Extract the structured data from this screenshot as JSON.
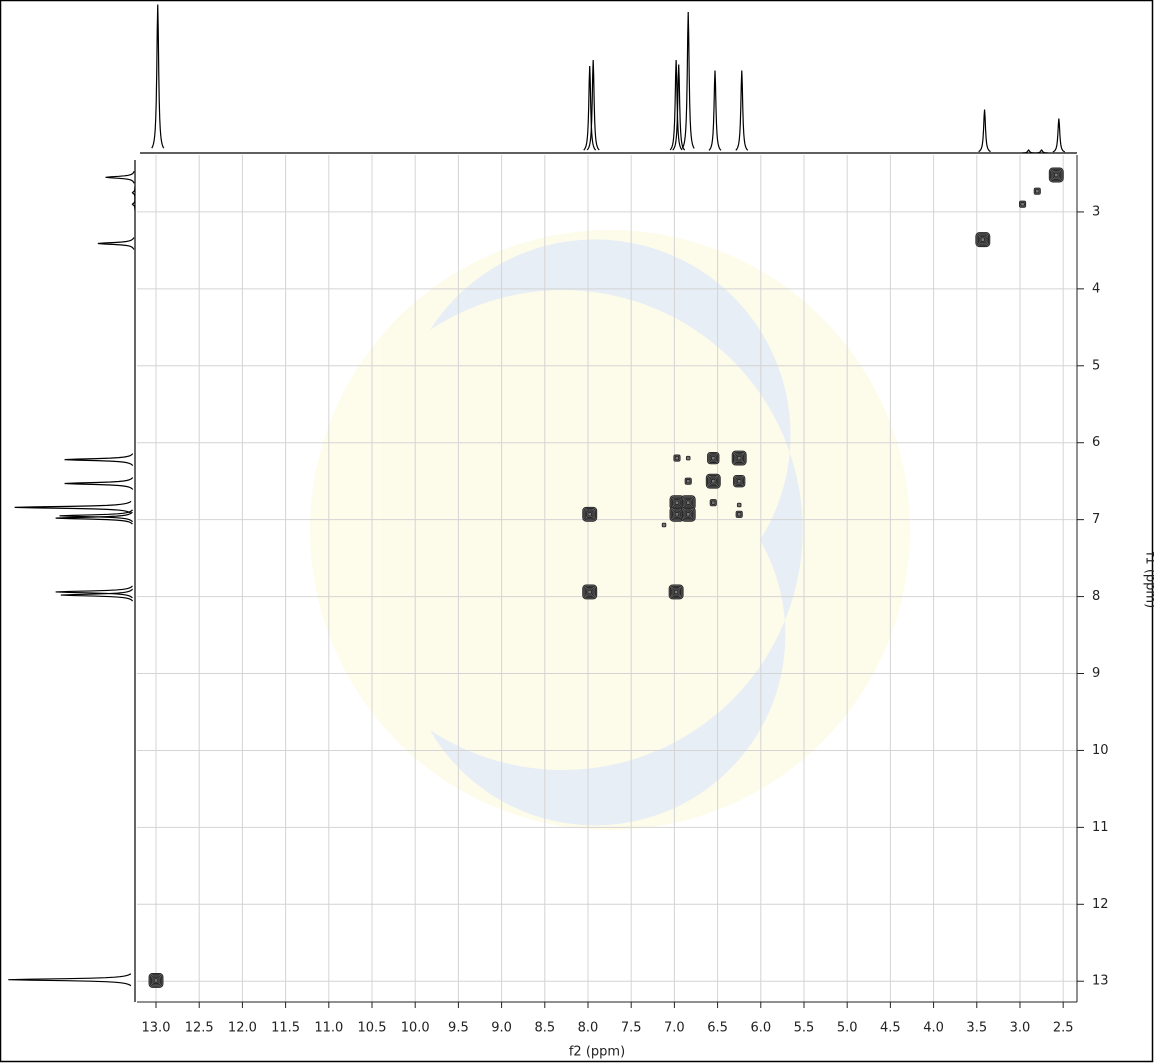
{
  "chart_data": {
    "type": "nmr2d",
    "x_label": "f2 (ppm)",
    "y_label": "f1 (ppm)",
    "xlim": [
      13.22,
      2.34
    ],
    "ylim": [
      2.26,
      13.27
    ],
    "xticks": [
      {
        "value": 13,
        "label": "13.0"
      },
      12.5,
      {
        "value": 12,
        "label": "12.0"
      },
      11.5,
      {
        "value": 11,
        "label": "11.0"
      },
      10.5,
      {
        "value": 10,
        "label": "10.0"
      },
      9.5,
      {
        "value": 9,
        "label": "9.0"
      },
      8.5,
      {
        "value": 8,
        "label": "8.0"
      },
      7.5,
      {
        "value": 7,
        "label": "7.0"
      },
      6.5,
      {
        "value": 6,
        "label": "6.0"
      },
      5.5,
      {
        "value": 5,
        "label": "5.0"
      },
      4.5,
      {
        "value": 4,
        "label": "4.0"
      },
      3.5,
      {
        "value": 3,
        "label": "3.0"
      },
      2.5
    ],
    "yticks": [
      3,
      4,
      5,
      6,
      7,
      8,
      9,
      10,
      11,
      12,
      13
    ],
    "grid": true,
    "projection": {
      "shifts": [
        12.98,
        7.98,
        7.94,
        6.98,
        6.95,
        6.84,
        6.53,
        6.22,
        3.41,
        2.9,
        2.75,
        2.55
      ],
      "intensities": [
        99,
        58,
        62,
        62,
        59,
        94,
        55,
        55,
        29,
        2,
        2,
        23
      ]
    },
    "cross_peaks": {
      "f2": [
        13.0,
        7.98,
        7.98,
        6.98,
        6.97,
        6.97,
        6.84,
        6.84,
        6.55,
        6.55,
        6.25,
        6.25,
        2.58,
        3.43,
        2.97,
        2.8,
        6.97,
        6.84,
        6.84,
        6.55,
        6.25,
        6.25,
        7.12
      ],
      "f1": [
        12.99,
        7.94,
        6.93,
        7.94,
        6.78,
        6.93,
        6.78,
        6.93,
        6.2,
        6.5,
        6.2,
        6.5,
        2.52,
        3.36,
        2.9,
        2.73,
        6.2,
        6.2,
        6.5,
        6.78,
        6.81,
        6.93,
        7.07
      ],
      "intensity": [
        100,
        100,
        100,
        100,
        100,
        100,
        100,
        100,
        70,
        100,
        100,
        70,
        100,
        100,
        40,
        40,
        40,
        20,
        40,
        40,
        20,
        40,
        20
      ]
    },
    "color": "#222222"
  }
}
